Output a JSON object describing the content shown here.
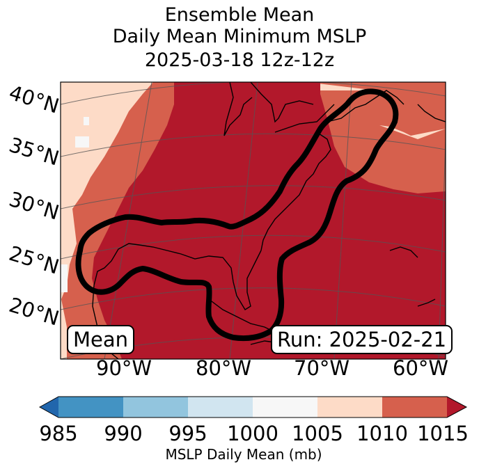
{
  "title": {
    "line1": "Ensemble Mean",
    "line2": "Daily Mean Minimum MSLP",
    "line3": "2025-03-18 12z-12z"
  },
  "latitude_labels": [
    "40°N",
    "35°N",
    "30°N",
    "25°N",
    "20°N"
  ],
  "longitude_labels": [
    "90°W",
    "80°W",
    "70°W",
    "60°W"
  ],
  "mean_label": "Mean",
  "run_label": "Run: 2025-02-21",
  "colorbar": {
    "ticks": [
      "985",
      "990",
      "995",
      "1000",
      "1005",
      "1010",
      "1015"
    ],
    "label": "MSLP Daily Mean (mb)",
    "colors": [
      "#2166ac",
      "#4393c3",
      "#92c5de",
      "#d1e5f0",
      "#f7f7f7",
      "#fddbc7",
      "#d6604d",
      "#b2182b"
    ]
  },
  "field_colors": {
    "level_1005_1010": "#fddbc7",
    "level_1010_1015": "#d6604d",
    "level_above_1015": "#b2182b",
    "level_1000_1005": "#f7f7f7"
  }
}
